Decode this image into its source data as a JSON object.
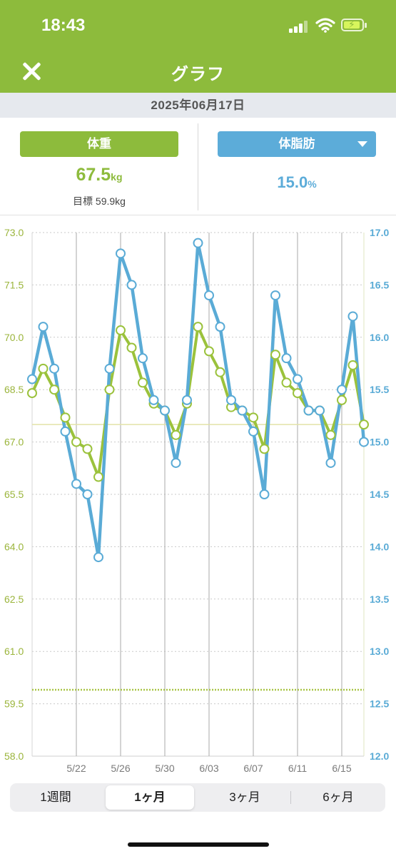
{
  "status_bar": {
    "time": "18:43",
    "icons": [
      "cellular-signal-icon",
      "wifi-icon",
      "battery-charging-icon"
    ]
  },
  "nav": {
    "title": "グラフ",
    "close_icon": "close-icon"
  },
  "date": "2025年06月17日",
  "metrics": {
    "weight": {
      "label": "体重",
      "value": "67.5",
      "unit": "kg",
      "goal_label": "目標 59.9kg"
    },
    "body_fat": {
      "label": "体脂肪",
      "value": "15.0",
      "unit": "%",
      "dropdown_icon": "caret-down-icon"
    }
  },
  "colors": {
    "accent_green": "#8dbb3c",
    "accent_blue": "#5cacd9",
    "weight_line": "#9bc23c",
    "fat_line": "#5aabd6"
  },
  "chart_data": {
    "type": "line",
    "x": [
      "5/18",
      "5/19",
      "5/20",
      "5/21",
      "5/22",
      "5/23",
      "5/24",
      "5/25",
      "5/26",
      "5/27",
      "5/28",
      "5/29",
      "5/30",
      "5/31",
      "6/01",
      "6/02",
      "6/03",
      "6/04",
      "6/05",
      "6/06",
      "6/07",
      "6/08",
      "6/09",
      "6/10",
      "6/11",
      "6/12",
      "6/13",
      "6/14",
      "6/15",
      "6/16",
      "6/17"
    ],
    "x_ticks": [
      "5/22",
      "5/26",
      "5/30",
      "6/03",
      "6/07",
      "6/11",
      "6/15"
    ],
    "y_left": {
      "min": 58.0,
      "max": 73.0,
      "ticks": [
        "73.0",
        "71.5",
        "70.0",
        "68.5",
        "67.0",
        "65.5",
        "64.0",
        "62.5",
        "61.0",
        "59.5",
        "58.0"
      ]
    },
    "y_right": {
      "min": 12.0,
      "max": 17.0,
      "ticks": [
        "17.0",
        "16.5",
        "16.0",
        "15.5",
        "15.0",
        "14.5",
        "14.0",
        "13.5",
        "13.0",
        "12.5",
        "12.0"
      ]
    },
    "series": [
      {
        "axis": "left",
        "values": [
          68.4,
          69.1,
          68.5,
          67.7,
          67.0,
          66.8,
          66.0,
          68.5,
          70.2,
          69.7,
          68.7,
          68.1,
          67.9,
          67.2,
          68.1,
          70.3,
          69.6,
          69.0,
          68.0,
          67.9,
          67.7,
          66.8,
          69.5,
          68.7,
          68.4,
          67.9,
          67.9,
          67.2,
          68.2,
          69.2,
          67.5
        ]
      },
      {
        "axis": "right",
        "values": [
          15.6,
          16.1,
          15.7,
          15.1,
          14.6,
          14.5,
          13.9,
          15.7,
          16.8,
          16.5,
          15.8,
          15.4,
          15.3,
          14.8,
          15.4,
          16.9,
          16.4,
          16.1,
          15.4,
          15.3,
          15.1,
          14.5,
          16.4,
          15.8,
          15.6,
          15.3,
          15.3,
          14.8,
          15.5,
          16.2,
          15.0
        ]
      }
    ],
    "reference_lines": [
      {
        "axis": "left",
        "value": 67.5,
        "style": "solid"
      },
      {
        "axis": "left",
        "value": 59.9,
        "style": "dotted"
      }
    ],
    "grid": true
  },
  "period_tabs": [
    {
      "label": "1週間",
      "active": false
    },
    {
      "label": "1ヶ月",
      "active": true
    },
    {
      "label": "3ヶ月",
      "active": false
    },
    {
      "label": "6ヶ月",
      "active": false
    }
  ]
}
